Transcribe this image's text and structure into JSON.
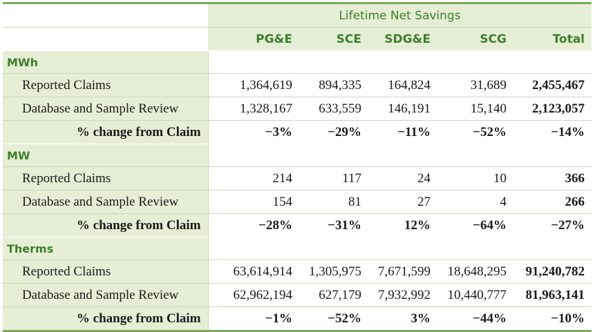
{
  "header": {
    "group_title": "Lifetime Net Savings",
    "columns": [
      "PG&E",
      "SCE",
      "SDG&E",
      "SCG",
      "Total"
    ]
  },
  "sections": [
    {
      "name": "MWh",
      "rows": [
        {
          "label": "Reported Claims",
          "values": [
            "1,364,619",
            "894,335",
            "164,824",
            "31,689",
            "2,455,467"
          ]
        },
        {
          "label": "Database and Sample Review",
          "values": [
            "1,328,167",
            "633,559",
            "146,191",
            "15,140",
            "2,123,057"
          ]
        },
        {
          "label": "% change from Claim",
          "values": [
            "−3%",
            "−29%",
            "−11%",
            "−52%",
            "−14%"
          ]
        }
      ]
    },
    {
      "name": "MW",
      "rows": [
        {
          "label": "Reported Claims",
          "values": [
            "214",
            "117",
            "24",
            "10",
            "366"
          ]
        },
        {
          "label": "Database and Sample Review",
          "values": [
            "154",
            "81",
            "27",
            "4",
            "266"
          ]
        },
        {
          "label": "% change from Claim",
          "values": [
            "−28%",
            "−31%",
            "12%",
            "−64%",
            "−27%"
          ]
        }
      ]
    },
    {
      "name": "Therms",
      "rows": [
        {
          "label": "Reported Claims",
          "values": [
            "63,614,914",
            "1,305,975",
            "7,671,599",
            "18,648,295",
            "91,240,782"
          ]
        },
        {
          "label": "Database and Sample Review",
          "values": [
            "62,962,194",
            "627,179",
            "7,932,992",
            "10,440,777",
            "81,963,141"
          ]
        },
        {
          "label": "% change from Claim",
          "values": [
            "−1%",
            "−52%",
            "3%",
            "−44%",
            "−10%"
          ]
        }
      ]
    }
  ],
  "colors": {
    "accent_green": "#3d7e2c",
    "header_fill": "#e6eed6",
    "rule_green": "#7aaa58"
  }
}
